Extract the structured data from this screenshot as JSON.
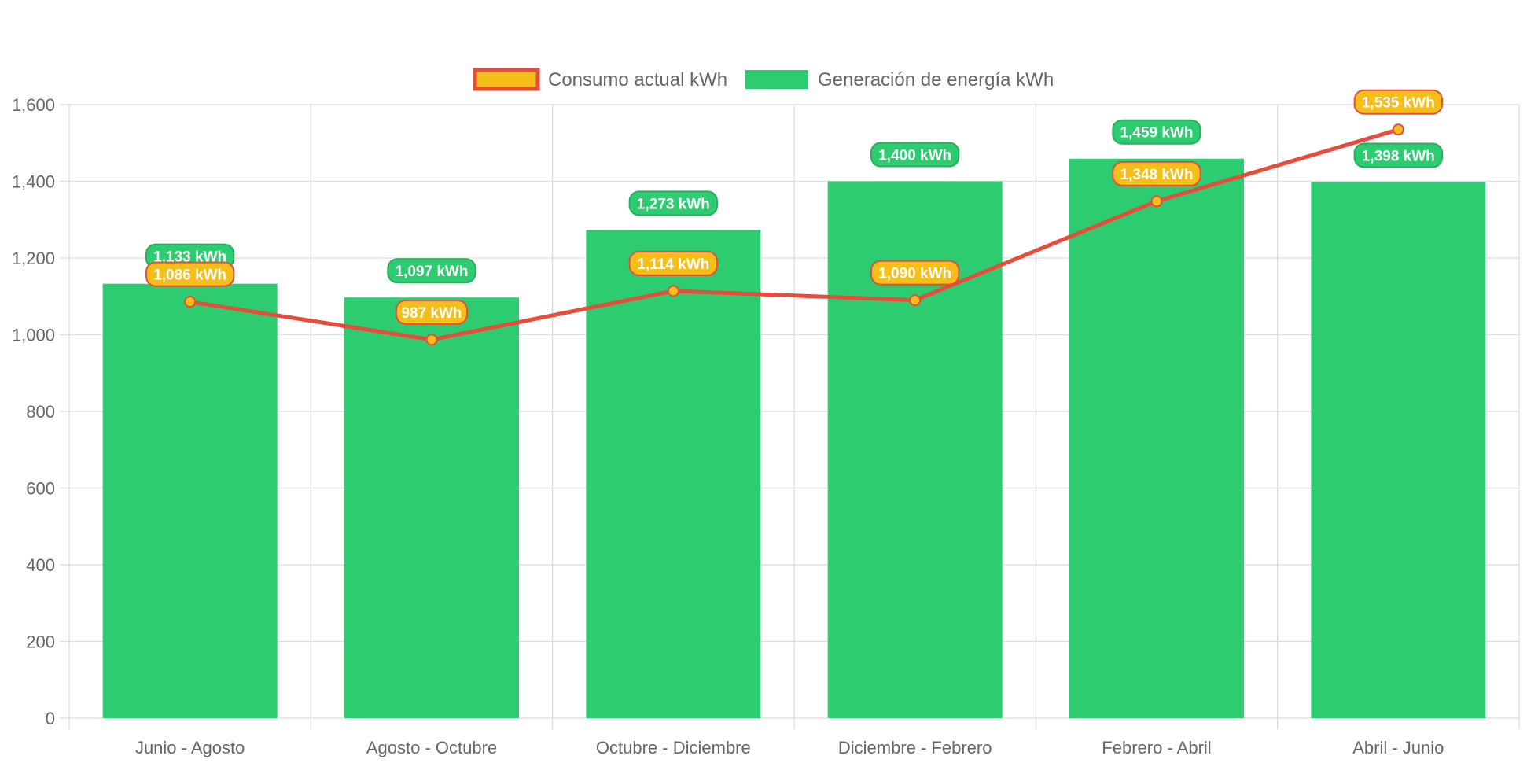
{
  "chart_data": {
    "type": "bar",
    "categories": [
      "Junio - Agosto",
      "Agosto - Octubre",
      "Octubre - Diciembre",
      "Diciembre - Febrero",
      "Febrero - Abril",
      "Abril - Junio"
    ],
    "series": [
      {
        "name": "Consumo actual kWh",
        "type": "line",
        "values": [
          1086,
          987,
          1114,
          1090,
          1348,
          1535
        ],
        "labels": [
          "1,086 kWh",
          "987 kWh",
          "1,114 kWh",
          "1,090 kWh",
          "1,348 kWh",
          "1,535 kWh"
        ],
        "color": "#e74c3c",
        "fill": "#f6be18"
      },
      {
        "name": "Generación de energía kWh",
        "type": "bar",
        "values": [
          1133,
          1097,
          1273,
          1400,
          1459,
          1398
        ],
        "labels": [
          "1,133 kWh",
          "1,097 kWh",
          "1,273 kWh",
          "1,400 kWh",
          "1,459 kWh",
          "1,398 kWh"
        ],
        "color": "#2ecc71"
      }
    ],
    "ylim": [
      0,
      1600
    ],
    "yticks": [
      0,
      200,
      400,
      600,
      800,
      1000,
      1200,
      1400,
      1600
    ],
    "ytick_labels": [
      "0",
      "200",
      "400",
      "600",
      "800",
      "1,000",
      "1,200",
      "1,400",
      "1,600"
    ],
    "grid": true,
    "legend_position": "top-center"
  }
}
